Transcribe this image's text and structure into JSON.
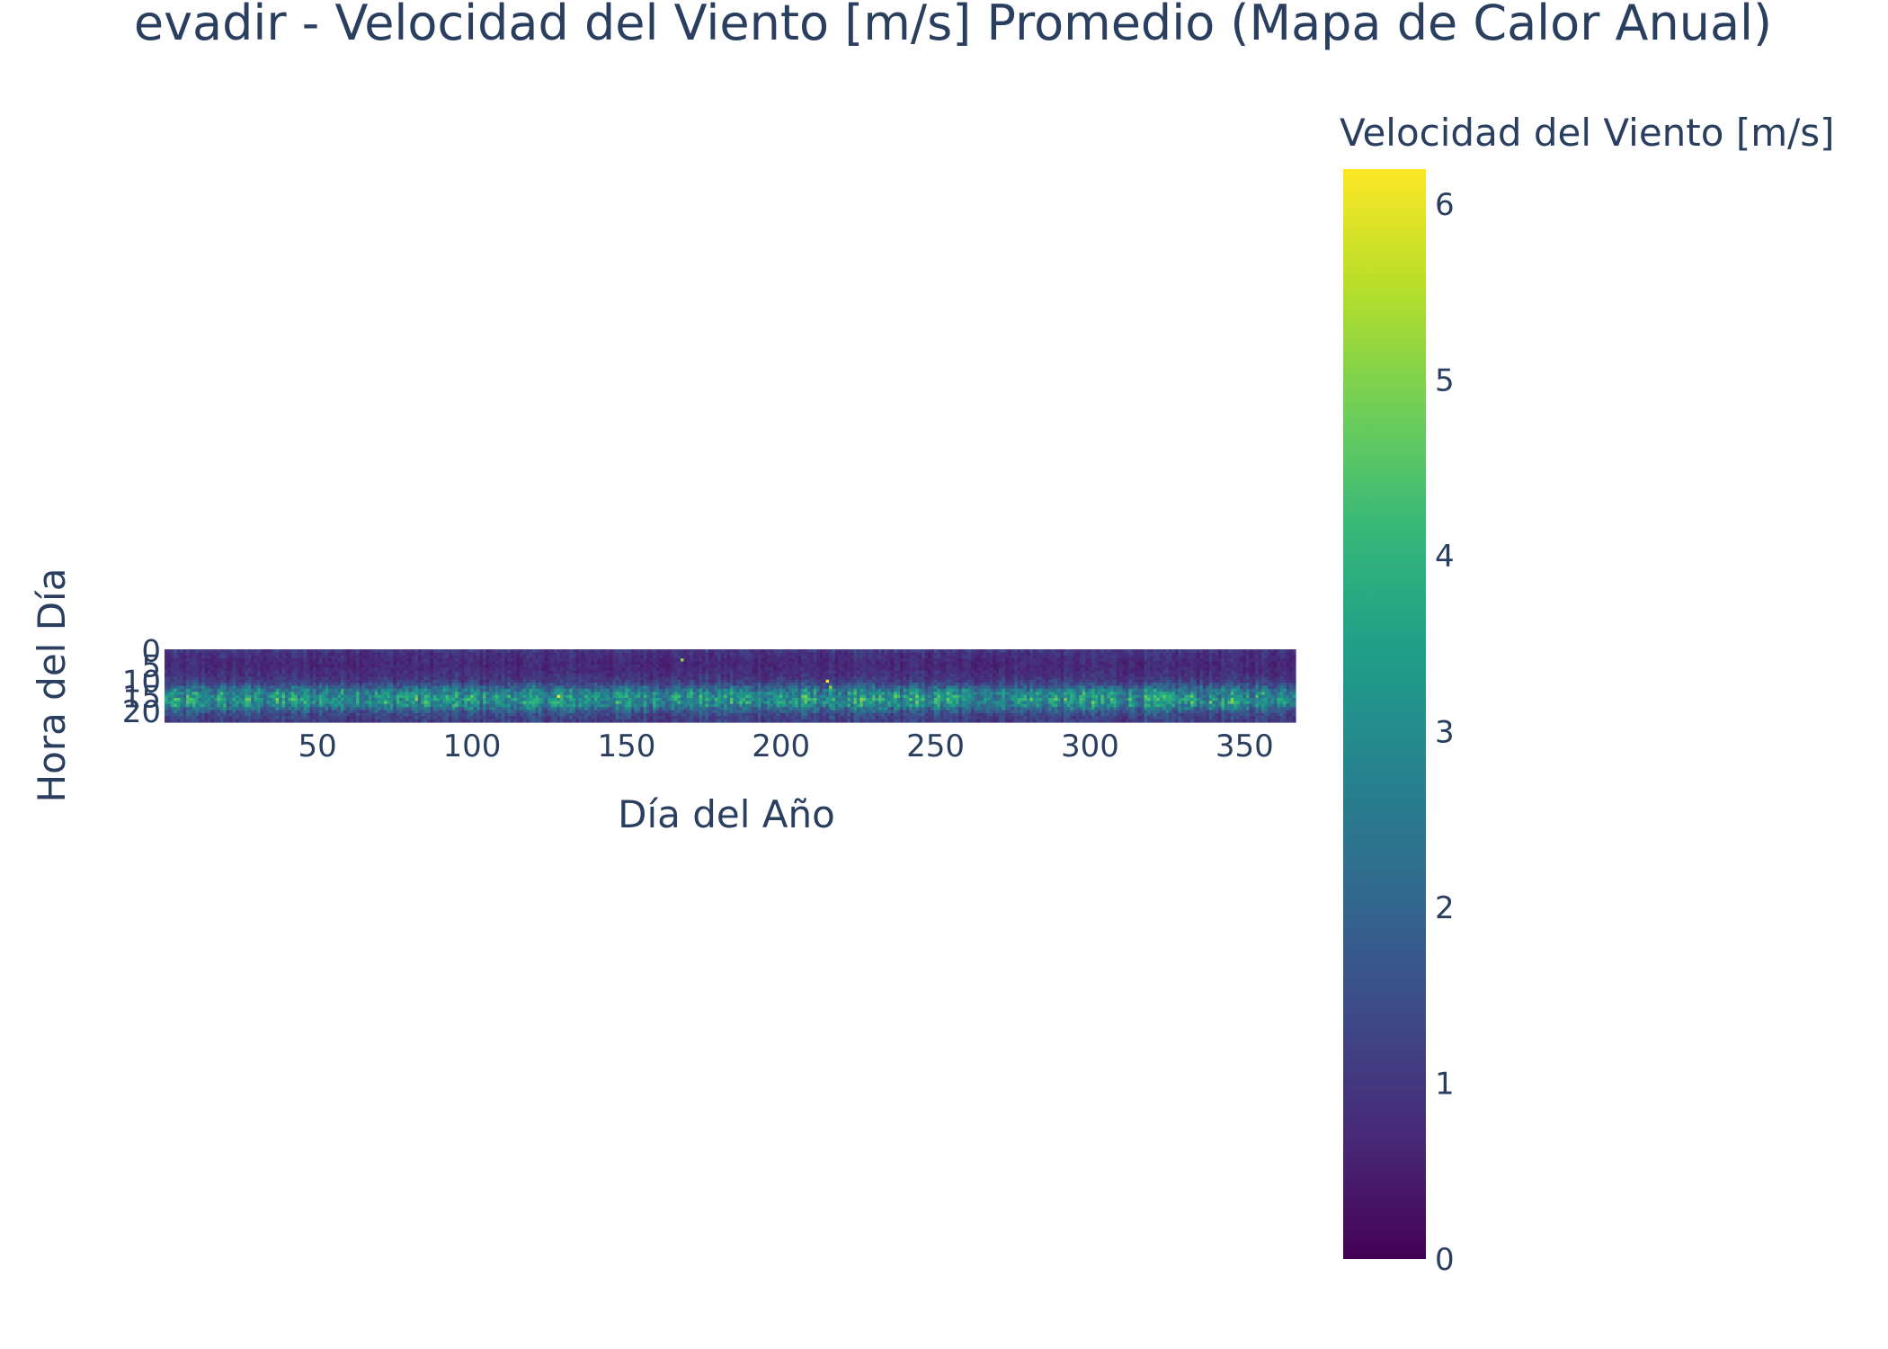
{
  "chart_data": {
    "type": "heatmap",
    "title": "evadir - Velocidad del Viento [m/s] Promedio (Mapa de Calor Anual)",
    "xlabel": "Día del Año",
    "ylabel": "Hora del Día",
    "xlim": [
      1,
      366
    ],
    "ylim": [
      0,
      23
    ],
    "x_ticks": [
      50,
      100,
      150,
      200,
      250,
      300,
      350
    ],
    "y_ticks": [
      0,
      5,
      10,
      15,
      20
    ],
    "colorbar": {
      "title": "Velocidad del Viento [m/s]",
      "range": [
        0,
        6.2
      ],
      "ticks": [
        0,
        1,
        2,
        3,
        4,
        5,
        6
      ],
      "colorscale": "Viridis"
    },
    "hourly_profile_mean_ms": [
      1.0,
      0.85,
      0.8,
      0.75,
      0.7,
      0.7,
      0.75,
      0.8,
      0.85,
      0.95,
      1.1,
      1.4,
      1.9,
      2.4,
      2.8,
      3.0,
      3.1,
      3.0,
      2.7,
      2.2,
      1.7,
      1.4,
      1.2,
      1.1
    ],
    "notable_peaks": [
      {
        "day": 128,
        "hour": 15,
        "value": 6.0
      },
      {
        "day": 168,
        "hour": 3,
        "value": 5.2
      },
      {
        "day": 215,
        "hour": 10,
        "value": 6.2
      },
      {
        "day": 216,
        "hour": 12,
        "value": 5.0
      }
    ]
  }
}
